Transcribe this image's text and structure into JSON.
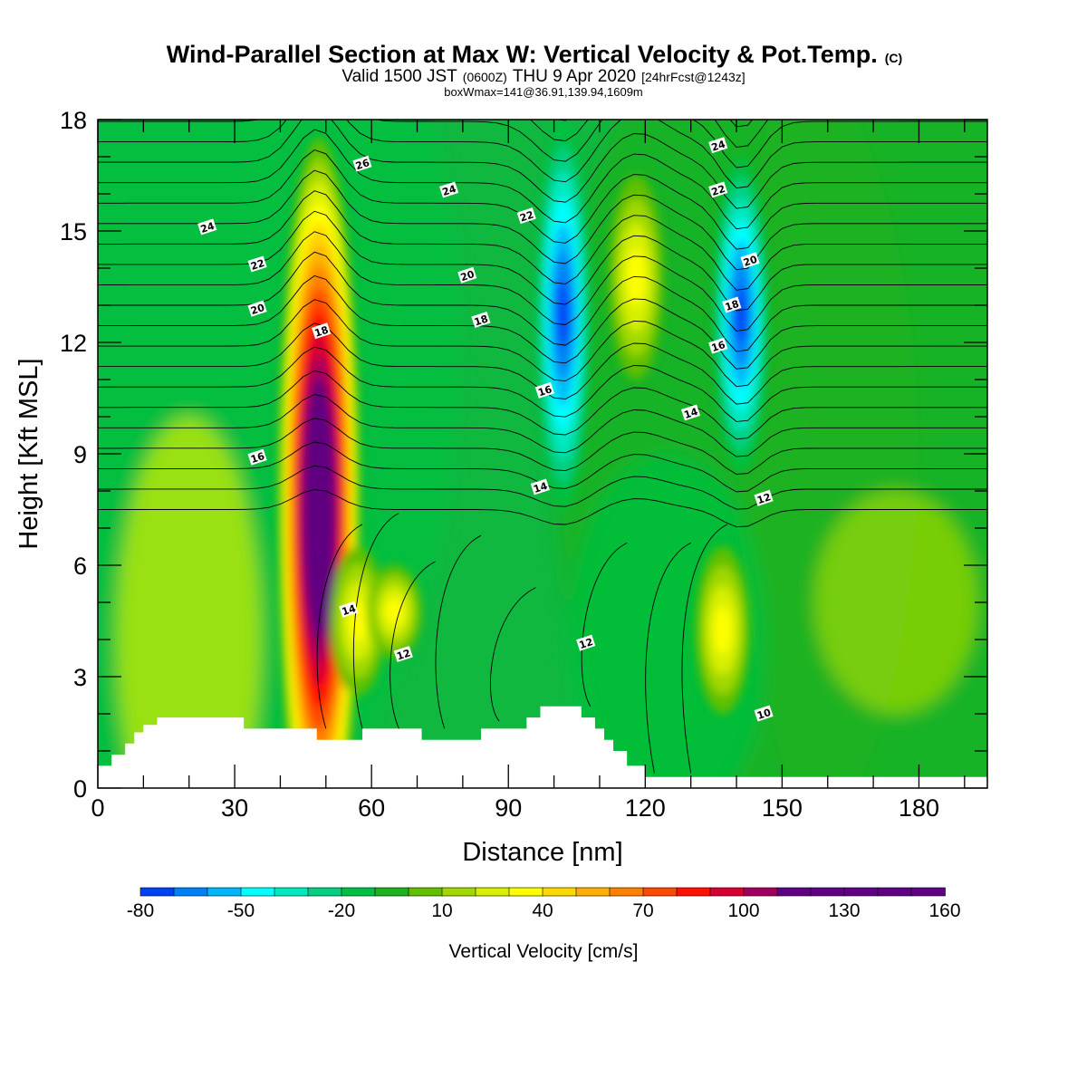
{
  "titles": {
    "main": "Wind-Parallel Section at Max W: Vertical Velocity & Pot.Temp.",
    "main_unit": "(C)",
    "valid_prefix": "Valid 1500 JST",
    "valid_z": "(0600Z)",
    "valid_date": "THU 9 Apr 2020",
    "valid_fcst": "[24hrFcst@1243z]",
    "boxw": "boxWmax=141@36.91,139.94,1609m"
  },
  "chart_data": {
    "type": "heatmap",
    "xlabel": "Distance [nm]",
    "ylabel": "Height [Kft MSL]",
    "xlim": [
      0,
      195
    ],
    "ylim": [
      0,
      18
    ],
    "xticks": [
      0,
      30,
      60,
      90,
      120,
      150,
      180
    ],
    "yticks": [
      0,
      3,
      6,
      9,
      12,
      15,
      18
    ],
    "colorbar": {
      "title": "Vertical Velocity [cm/s]",
      "min": -80,
      "max": 160,
      "step": 10,
      "tick_labels": [
        -80,
        -50,
        -20,
        10,
        40,
        70,
        100,
        130,
        160
      ],
      "colors": [
        "#0000f0",
        "#0040f8",
        "#0080f8",
        "#00b8f8",
        "#00ffff",
        "#00e8c0",
        "#00d080",
        "#00c040",
        "#20b020",
        "#60c000",
        "#a0d800",
        "#d8f000",
        "#ffff00",
        "#ffd800",
        "#ffb000",
        "#ff8000",
        "#ff4800",
        "#ff1000",
        "#d80030",
        "#a00060",
        "#600080"
      ]
    },
    "vertical_velocity_features": [
      {
        "type": "updraft",
        "x": 48.5,
        "y_bottom": 3,
        "y_top": 17.5,
        "y_peak": 7.5,
        "peak": 160
      },
      {
        "type": "updraft",
        "x": 57,
        "y_bottom": 2.5,
        "y_top": 6.5,
        "peak": 35
      },
      {
        "type": "updraft",
        "x": 65,
        "y_bottom": 3.5,
        "y_top": 6,
        "peak": 35
      },
      {
        "type": "downdraft",
        "x": 102,
        "y_bottom": 7.5,
        "y_top": 18,
        "peak": -65
      },
      {
        "type": "updraft",
        "x": 118,
        "y_bottom": 11,
        "y_top": 16.5,
        "peak": 35
      },
      {
        "type": "downdraft",
        "x": 141,
        "y_bottom": 8.5,
        "y_top": 17,
        "peak": -65
      },
      {
        "type": "updraft",
        "x": 137,
        "y_bottom": 2,
        "y_top": 6.5,
        "peak": 40
      }
    ],
    "theta_contour_labels": [
      {
        "value": "26",
        "x": 58,
        "y": 16.8
      },
      {
        "value": "24",
        "x": 24,
        "y": 15.1
      },
      {
        "value": "24",
        "x": 77,
        "y": 16.1
      },
      {
        "value": "24",
        "x": 136,
        "y": 17.3
      },
      {
        "value": "22",
        "x": 35,
        "y": 14.1
      },
      {
        "value": "22",
        "x": 94,
        "y": 15.4
      },
      {
        "value": "22",
        "x": 136,
        "y": 16.1
      },
      {
        "value": "20",
        "x": 35,
        "y": 12.9
      },
      {
        "value": "20",
        "x": 81,
        "y": 13.8
      },
      {
        "value": "20",
        "x": 143,
        "y": 14.2
      },
      {
        "value": "18",
        "x": 49,
        "y": 12.3
      },
      {
        "value": "18",
        "x": 84,
        "y": 12.6
      },
      {
        "value": "18",
        "x": 139,
        "y": 13.0
      },
      {
        "value": "16",
        "x": 35,
        "y": 8.9
      },
      {
        "value": "16",
        "x": 98,
        "y": 10.7
      },
      {
        "value": "16",
        "x": 136,
        "y": 11.9
      },
      {
        "value": "14",
        "x": 55,
        "y": 4.8
      },
      {
        "value": "14",
        "x": 97,
        "y": 8.1
      },
      {
        "value": "14",
        "x": 130,
        "y": 10.1
      },
      {
        "value": "12",
        "x": 67,
        "y": 3.6
      },
      {
        "value": "12",
        "x": 107,
        "y": 3.9
      },
      {
        "value": "12",
        "x": 146,
        "y": 7.8
      },
      {
        "value": "10",
        "x": 146,
        "y": 2.0
      }
    ]
  }
}
